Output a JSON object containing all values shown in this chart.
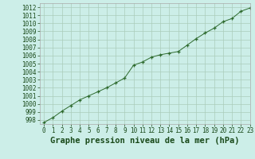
{
  "x": [
    0,
    1,
    2,
    3,
    4,
    5,
    6,
    7,
    8,
    9,
    10,
    11,
    12,
    13,
    14,
    15,
    16,
    17,
    18,
    19,
    20,
    21,
    22,
    23
  ],
  "y": [
    997.7,
    998.3,
    999.1,
    999.8,
    1000.5,
    1001.0,
    1001.5,
    1002.0,
    1002.6,
    1003.2,
    1004.8,
    1005.2,
    1005.8,
    1006.1,
    1006.3,
    1006.5,
    1007.3,
    1008.1,
    1008.8,
    1009.4,
    1010.2,
    1010.6,
    1011.5,
    1011.9
  ],
  "line_color": "#2d6a2d",
  "marker_color": "#2d6a2d",
  "bg_color": "#cceee8",
  "grid_color": "#aaccbb",
  "xlabel": "Graphe pression niveau de la mer (hPa)",
  "xlim": [
    -0.5,
    23
  ],
  "ylim": [
    997.5,
    1012.5
  ],
  "yticks": [
    998,
    999,
    1000,
    1001,
    1002,
    1003,
    1004,
    1005,
    1006,
    1007,
    1008,
    1009,
    1010,
    1011,
    1012
  ],
  "xticks": [
    0,
    1,
    2,
    3,
    4,
    5,
    6,
    7,
    8,
    9,
    10,
    11,
    12,
    13,
    14,
    15,
    16,
    17,
    18,
    19,
    20,
    21,
    22,
    23
  ],
  "xlabel_fontsize": 7.5,
  "tick_fontsize": 5.5,
  "label_color": "#1a4a1a",
  "spine_color": "#aaaaaa"
}
